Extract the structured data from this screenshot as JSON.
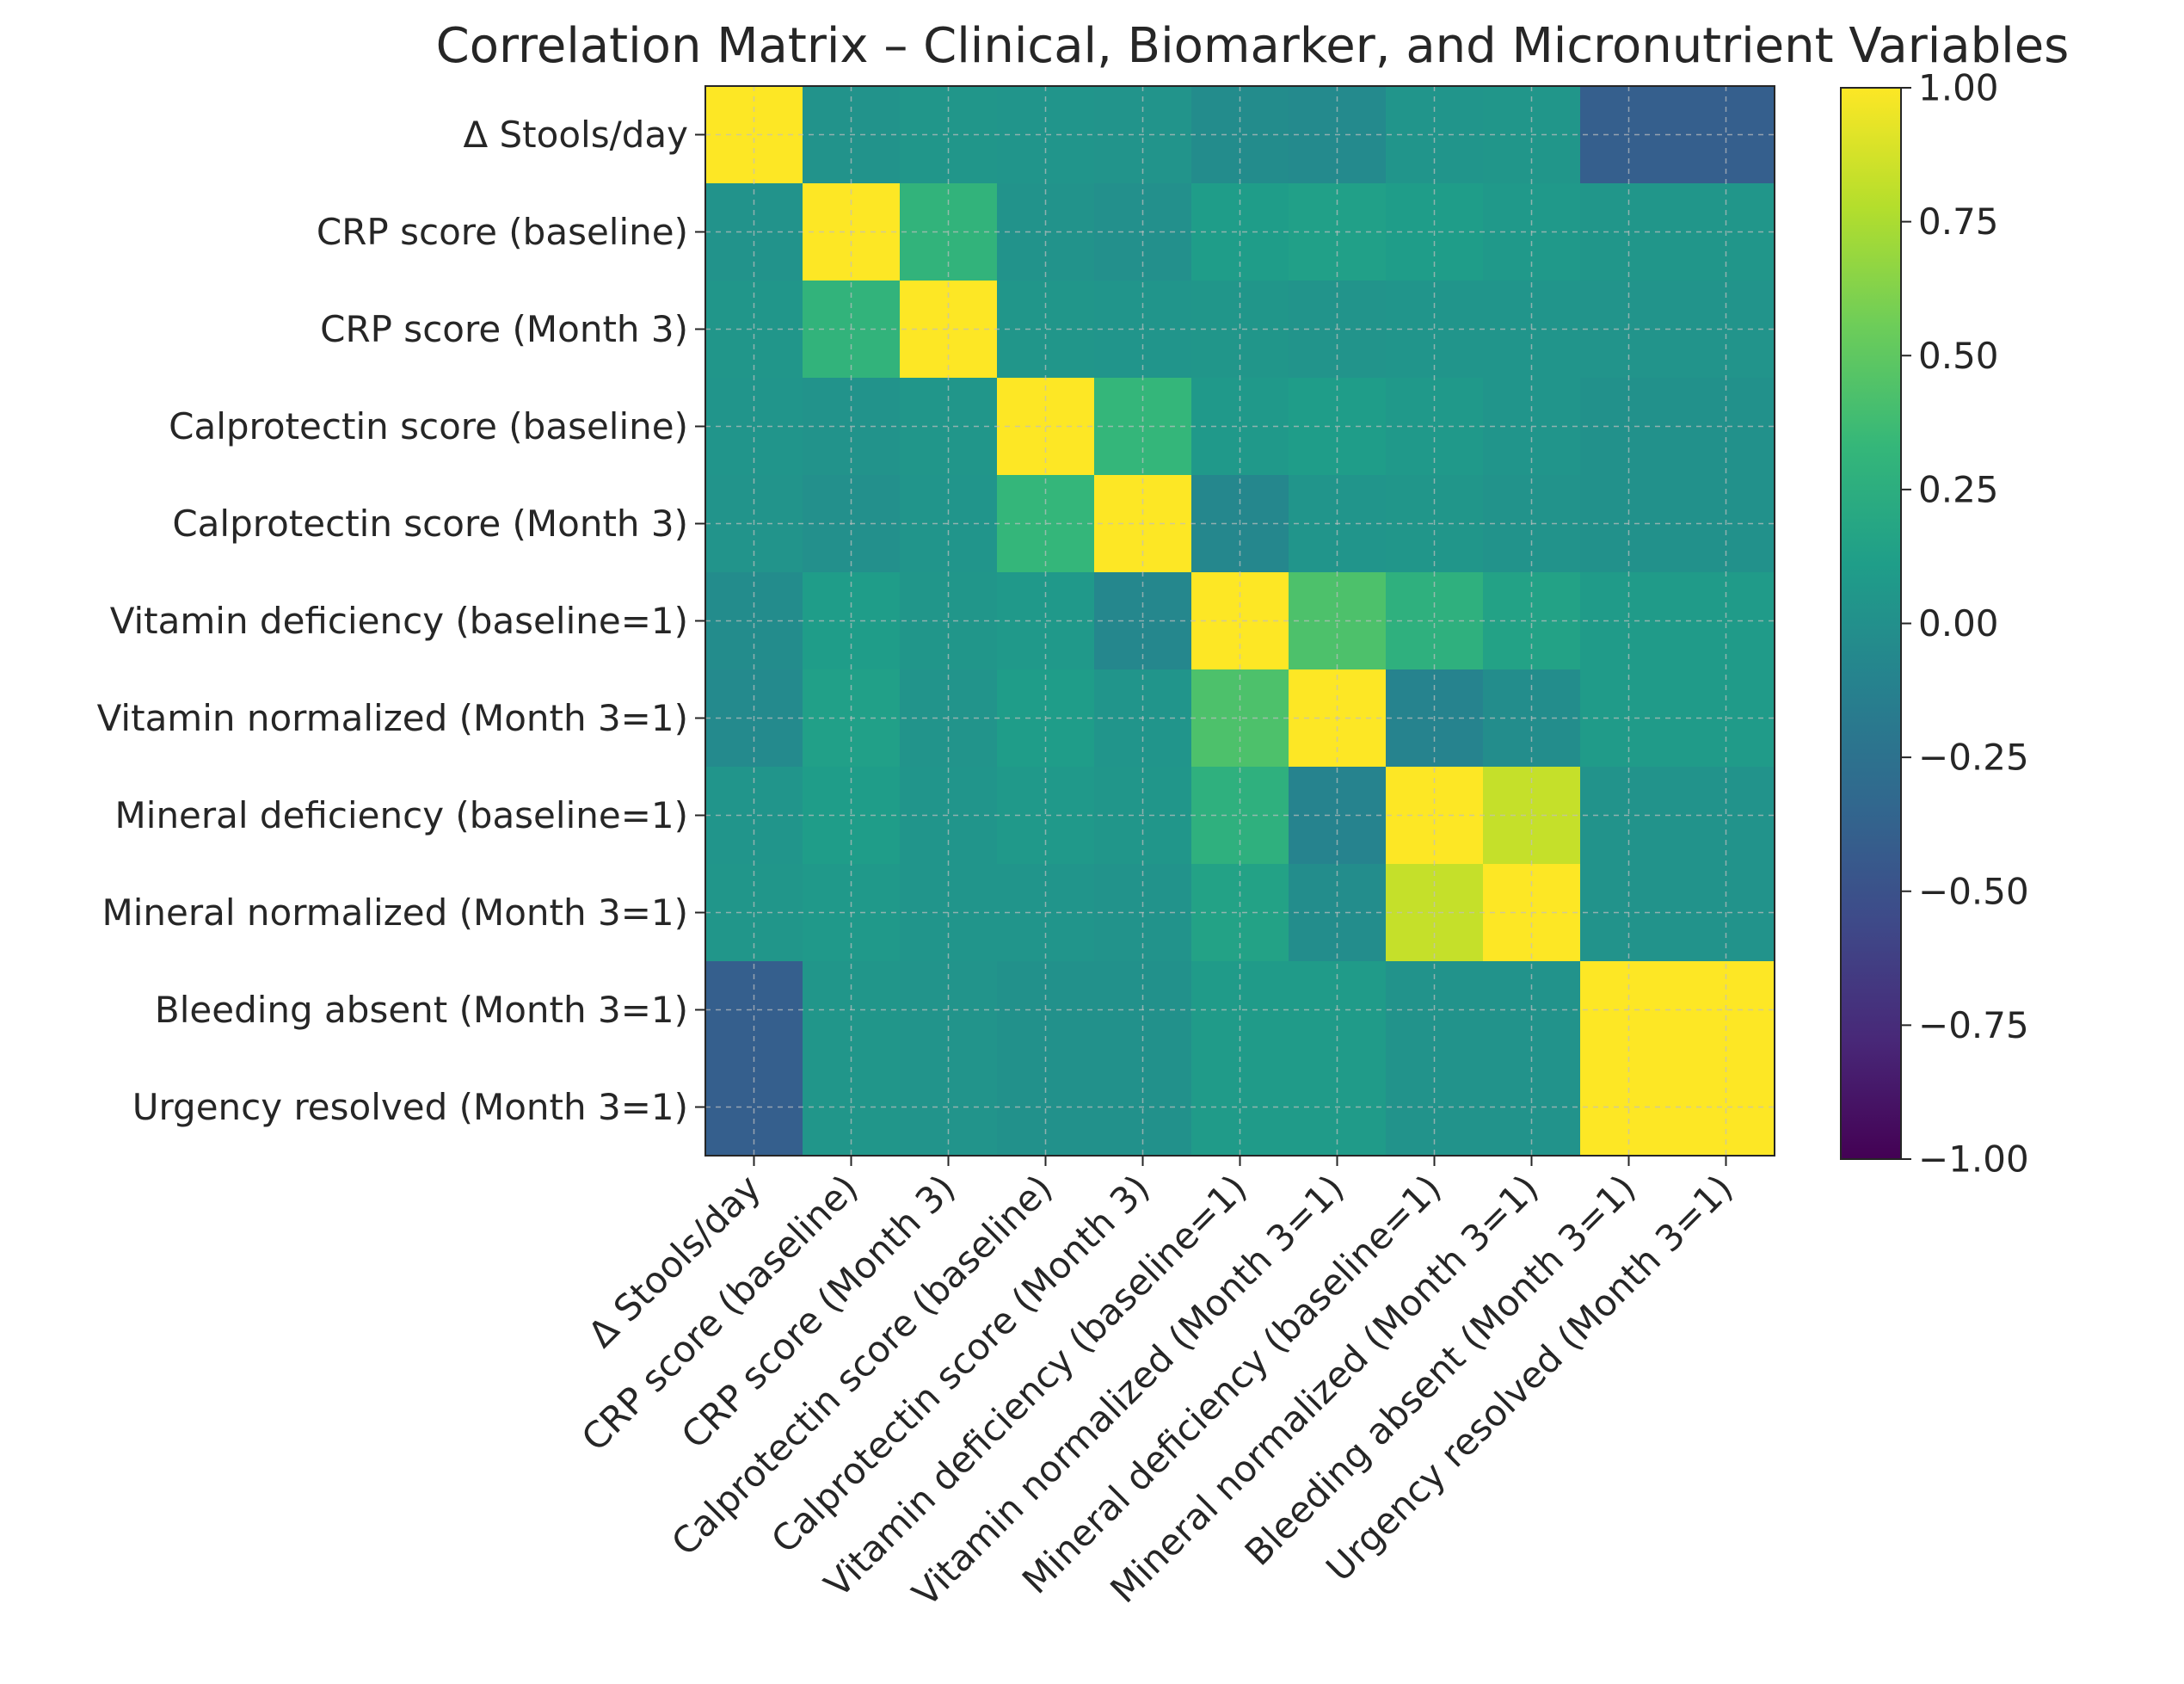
{
  "chart_data": {
    "type": "heatmap",
    "title": "Correlation Matrix – Clinical, Biomarker, and Micronutrient Variables",
    "xlabel": "",
    "ylabel": "",
    "variables": [
      "Δ Stools/day",
      "CRP score (baseline)",
      "CRP score (Month 3)",
      "Calprotectin score (baseline)",
      "Calprotectin score (Month 3)",
      "Vitamin deficiency (baseline=1)",
      "Vitamin normalized (Month 3=1)",
      "Mineral deficiency (baseline=1)",
      "Mineral normalized (Month 3=1)",
      "Bleeding absent (Month 3=1)",
      "Urgency resolved (Month 3=1)"
    ],
    "matrix": [
      [
        1.0,
        0.02,
        0.05,
        0.04,
        0.03,
        -0.03,
        -0.05,
        0.04,
        0.05,
        -0.4,
        -0.4
      ],
      [
        0.02,
        1.0,
        0.3,
        0.02,
        0.0,
        0.1,
        0.13,
        0.1,
        0.07,
        0.05,
        0.05
      ],
      [
        0.05,
        0.3,
        1.0,
        0.05,
        0.04,
        0.05,
        0.03,
        0.04,
        0.04,
        0.03,
        0.03
      ],
      [
        0.04,
        0.02,
        0.05,
        1.0,
        0.32,
        0.07,
        0.1,
        0.07,
        0.04,
        0.01,
        0.01
      ],
      [
        0.03,
        0.0,
        0.04,
        0.32,
        1.0,
        -0.07,
        0.04,
        0.05,
        0.02,
        0.01,
        0.01
      ],
      [
        -0.03,
        0.1,
        0.05,
        0.07,
        -0.07,
        1.0,
        0.43,
        0.27,
        0.15,
        0.09,
        0.09
      ],
      [
        -0.05,
        0.13,
        0.03,
        0.1,
        0.04,
        0.43,
        1.0,
        -0.1,
        -0.02,
        0.09,
        0.09
      ],
      [
        0.04,
        0.1,
        0.04,
        0.07,
        0.05,
        0.27,
        -0.1,
        1.0,
        0.83,
        0.02,
        0.02
      ],
      [
        0.05,
        0.07,
        0.04,
        0.04,
        0.02,
        0.15,
        -0.02,
        0.83,
        1.0,
        0.02,
        0.02
      ],
      [
        -0.4,
        0.05,
        0.03,
        0.01,
        0.01,
        0.09,
        0.09,
        0.02,
        0.02,
        1.0,
        1.0
      ],
      [
        -0.4,
        0.05,
        0.03,
        0.01,
        0.01,
        0.09,
        0.09,
        0.02,
        0.02,
        1.0,
        1.0
      ]
    ],
    "vmin": -1.0,
    "vmax": 1.0,
    "colormap": "viridis",
    "grid": true,
    "colorbar": {
      "ticks": [
        1.0,
        0.75,
        0.5,
        0.25,
        0.0,
        -0.25,
        -0.5,
        -0.75,
        -1.0
      ],
      "tick_labels": [
        "1.00",
        "0.75",
        "0.50",
        "0.25",
        "0.00",
        "−0.25",
        "−0.50",
        "−0.75",
        "−1.00"
      ]
    }
  },
  "colors": {
    "text": "#262626",
    "axis": "#262626",
    "grid": "#bfbfbf"
  }
}
